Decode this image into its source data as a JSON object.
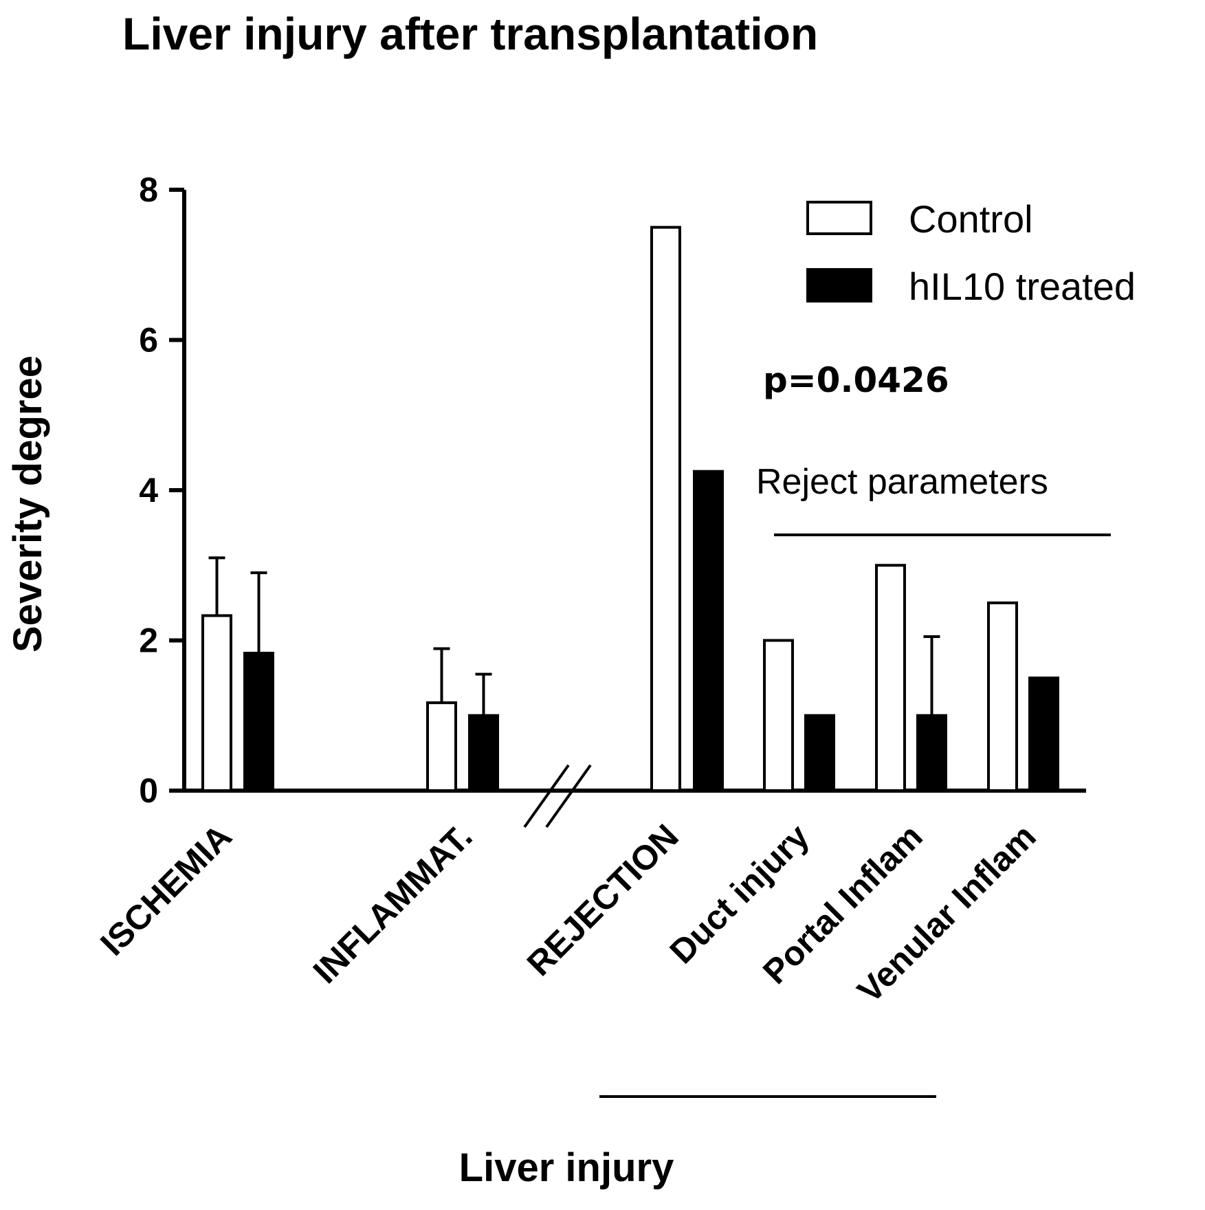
{
  "chart_data": {
    "type": "bar",
    "title": "Liver injury after transplantation",
    "xlabel": "Liver injury",
    "ylabel": "Severity degree",
    "ylim": [
      0,
      8
    ],
    "yticks": [
      "0",
      "2",
      "4",
      "6",
      "8"
    ],
    "categories": [
      "ISCHEMIA",
      "INFLAMMAT.",
      "REJECTION",
      "Duct injury",
      "Portal Inflam",
      "Venular Inflam"
    ],
    "axis_break": "//",
    "series": [
      {
        "name": "Control",
        "color": "#ffffff",
        "values": [
          2.33,
          1.17,
          7.5,
          2.0,
          3.0,
          2.5
        ],
        "error": [
          0.77,
          0.72,
          null,
          null,
          null,
          null
        ]
      },
      {
        "name": "hIL10 treated",
        "color": "#000000",
        "values": [
          1.83,
          1.0,
          4.25,
          1.0,
          1.0,
          1.5
        ],
        "error": [
          1.07,
          0.55,
          null,
          null,
          1.05,
          null
        ]
      }
    ],
    "annotations": {
      "pvalue": "p=0.0426",
      "group_label": "Reject parameters"
    },
    "legend_position": "top-right",
    "grid": false
  }
}
